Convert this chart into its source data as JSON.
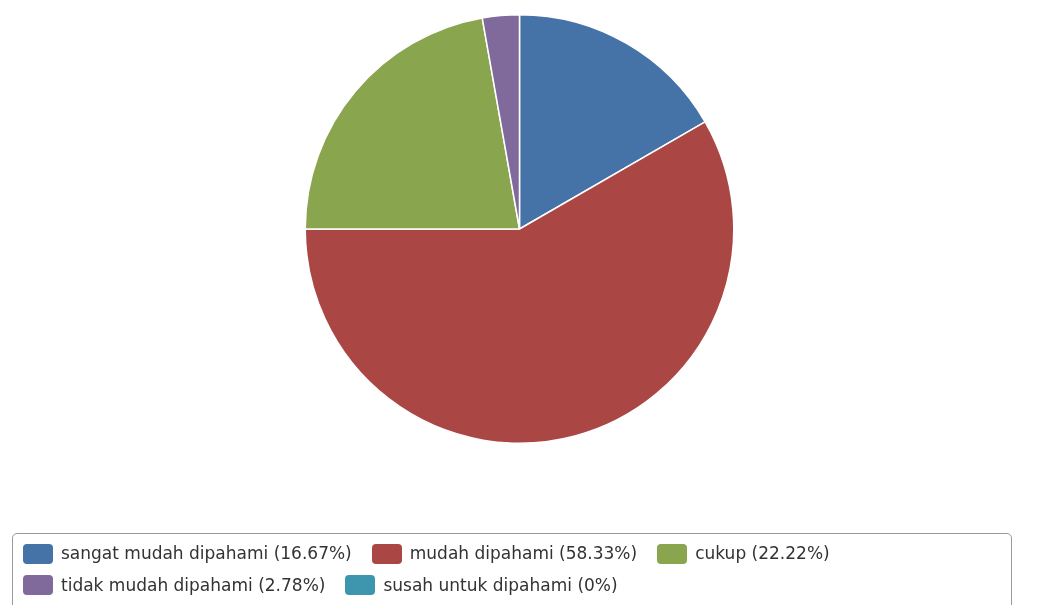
{
  "chart_data": {
    "type": "pie",
    "categories": [
      "sangat mudah dipahami (16.67%)",
      "mudah dipahami (58.33%)",
      "cukup (22.22%)",
      "tidak mudah dipahami (2.78%)",
      "susah untuk dipahami (0%)"
    ],
    "values": [
      16.67,
      58.33,
      22.22,
      2.78,
      0
    ],
    "colors": [
      "#4572a7",
      "#aa4643",
      "#89a54e",
      "#80699b",
      "#3d96ae"
    ],
    "legend": "bottom"
  }
}
